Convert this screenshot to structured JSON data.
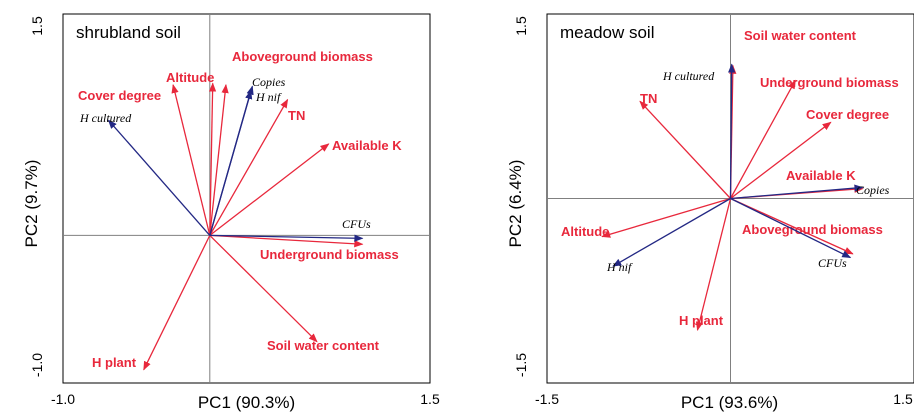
{
  "colors": {
    "environment": "#e8283c",
    "species": "#232884"
  },
  "chart_data": [
    {
      "type": "biplot",
      "title": "shrubland soil",
      "xlabel": "PC1 (90.3%)",
      "ylabel": "PC2 (9.7%)",
      "xlim": [
        -1.0,
        1.5
      ],
      "ylim": [
        -1.0,
        1.5
      ],
      "x_tick_labels": [
        "-1.0",
        "1.5"
      ],
      "y_tick_labels": [
        "1.5",
        "-1.0"
      ],
      "environment_vectors": [
        {
          "name": "Aboveground biomass",
          "x": 0.11,
          "y": 1.02
        },
        {
          "name": "Altitude",
          "x": 0.02,
          "y": 1.03
        },
        {
          "name": "Cover degree",
          "x": -0.25,
          "y": 1.02
        },
        {
          "name": "TN",
          "x": 0.53,
          "y": 0.92
        },
        {
          "name": "Available K",
          "x": 0.81,
          "y": 0.62
        },
        {
          "name": "Underground biomass",
          "x": 1.04,
          "y": -0.06
        },
        {
          "name": "Soil water content",
          "x": 0.73,
          "y": -0.72
        },
        {
          "name": "H plant",
          "x": -0.45,
          "y": -0.91
        }
      ],
      "species_vectors": [
        {
          "name": "Copies",
          "x": 0.29,
          "y": 1.01
        },
        {
          "name": "H nif",
          "x": 0.28,
          "y": 0.98
        },
        {
          "name": "H cultured",
          "x": -0.69,
          "y": 0.78
        },
        {
          "name": "CFUs",
          "x": 1.04,
          "y": -0.02
        }
      ]
    },
    {
      "type": "biplot",
      "title": "meadow soil",
      "xlabel": "PC1 (93.6%)",
      "ylabel": "PC2 (6.4%)",
      "xlim": [
        -1.5,
        1.5
      ],
      "ylim": [
        -1.5,
        1.5
      ],
      "x_tick_labels": [
        "-1.5",
        "1.5"
      ],
      "y_tick_labels": [
        "1.5",
        "-1.5"
      ],
      "environment_vectors": [
        {
          "name": "Soil water content",
          "x": 0.02,
          "y": 1.08
        },
        {
          "name": "Underground biomass",
          "x": 0.53,
          "y": 0.96
        },
        {
          "name": "TN",
          "x": -0.74,
          "y": 0.79
        },
        {
          "name": "Cover degree",
          "x": 0.82,
          "y": 0.62
        },
        {
          "name": "Available K",
          "x": 1.08,
          "y": 0.08
        },
        {
          "name": "Aboveground biomass",
          "x": 1.0,
          "y": -0.45
        },
        {
          "name": "Altitude",
          "x": -1.05,
          "y": -0.31
        },
        {
          "name": "H plant",
          "x": -0.27,
          "y": -1.07
        }
      ],
      "species_vectors": [
        {
          "name": "H cultured",
          "x": 0.01,
          "y": 1.09
        },
        {
          "name": "Copies",
          "x": 1.08,
          "y": 0.09
        },
        {
          "name": "CFUs",
          "x": 0.98,
          "y": -0.48
        },
        {
          "name": "H nif",
          "x": -0.96,
          "y": -0.55
        }
      ]
    }
  ]
}
